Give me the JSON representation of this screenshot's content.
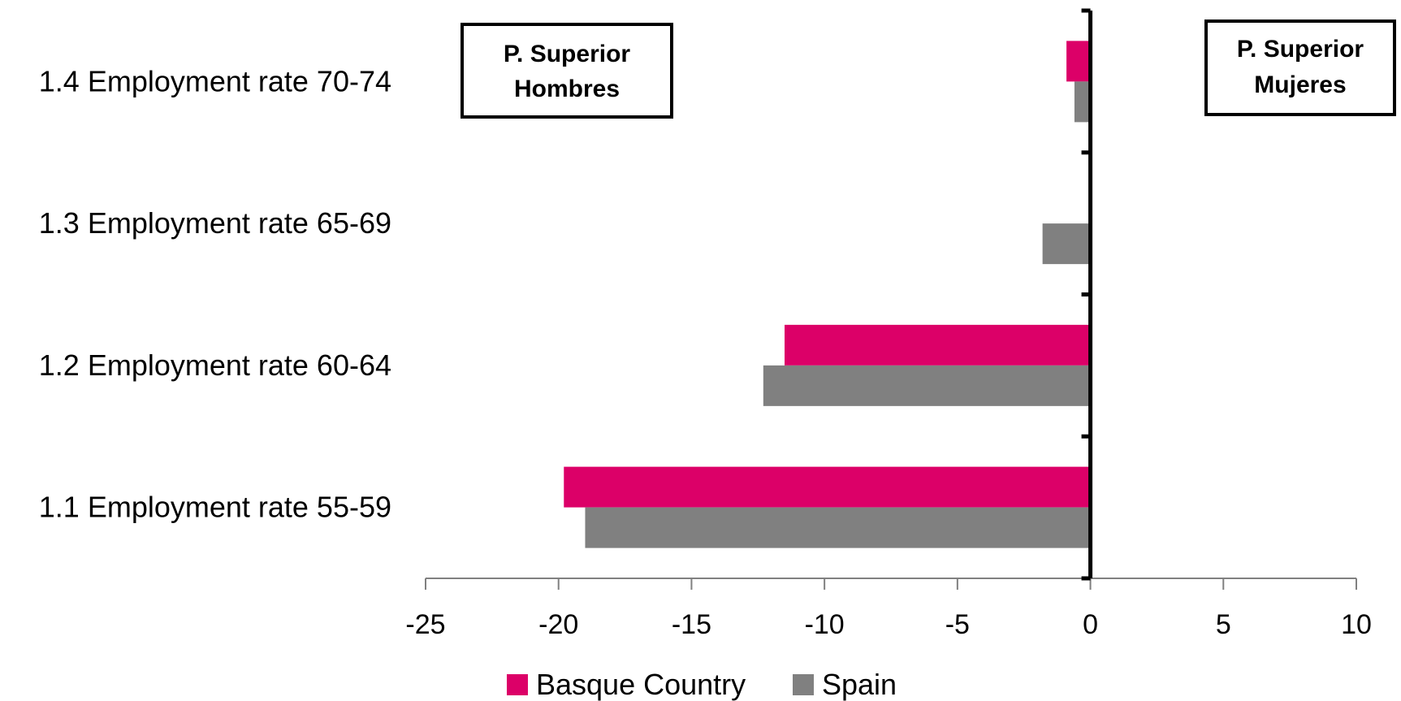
{
  "chart_data": {
    "type": "bar",
    "orientation": "horizontal",
    "categories": [
      "1.1 Employment rate 55-59",
      "1.2 Employment rate 60-64",
      "1.3 Employment rate 65-69",
      "1.4 Employment rate 70-74"
    ],
    "series": [
      {
        "name": "Basque Country",
        "color": "#dc0068",
        "values": [
          -19.8,
          -11.5,
          0,
          -0.9
        ]
      },
      {
        "name": "Spain",
        "color": "#808080",
        "values": [
          -19.0,
          -12.3,
          -1.8,
          -0.6
        ]
      }
    ],
    "xlim": [
      -25,
      10
    ],
    "xticks": [
      "-25",
      "-20",
      "-15",
      "-10",
      "-5",
      "0",
      "5",
      "10"
    ],
    "grid": false,
    "legend_position": "bottom",
    "annotations": {
      "left_box": [
        "P. Superior",
        "Hombres"
      ],
      "right_box": [
        "P. Superior",
        "Mujeres"
      ]
    }
  }
}
